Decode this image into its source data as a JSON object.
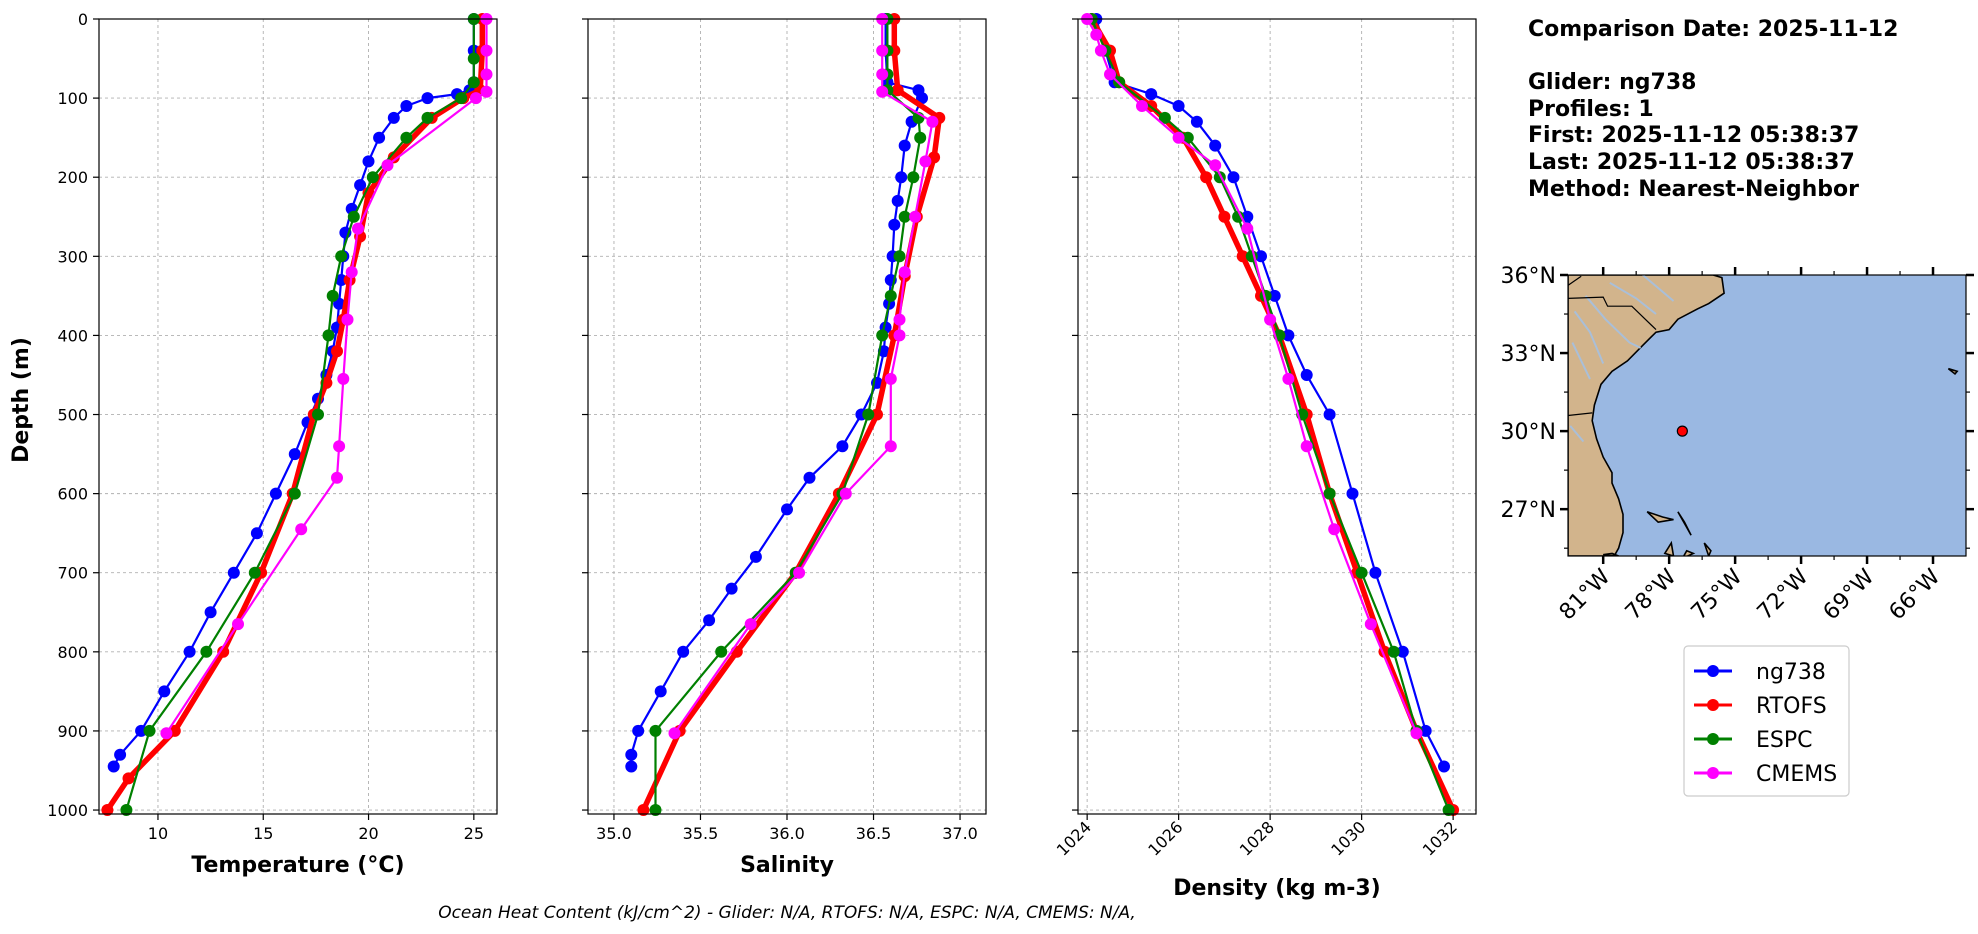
{
  "info": {
    "comparison_date": "Comparison Date: 2025-11-12",
    "glider": "Glider: ng738",
    "profiles": "Profiles: 1",
    "first": "First: 2025-11-12 05:38:37",
    "last": "Last: 2025-11-12 05:38:37",
    "method": "Method: Nearest-Neighbor"
  },
  "footer": "Ocean Heat Content (kJ/cm^2) - Glider: N/A,  RTOFS: N/A,  ESPC: N/A,  CMEMS: N/A,",
  "colors": {
    "ng738": "#0000ff",
    "RTOFS": "#ff0000",
    "ESPC": "#008000",
    "CMEMS": "#ff00ff",
    "land": "#d2b48c",
    "ocean": "#9ab8e2"
  },
  "map": {
    "lat_labels": [
      "36°N",
      "33°N",
      "30°N",
      "27°N"
    ],
    "lon_labels": [
      "81°W",
      "78°W",
      "75°W",
      "72°W",
      "69°W",
      "66°W"
    ],
    "lat_values": [
      36,
      33,
      30,
      27
    ],
    "lon_values": [
      -81,
      -78,
      -75,
      -72,
      -69,
      -66
    ],
    "extent": {
      "lon_min": -82.6,
      "lon_max": -64.5,
      "lat_min": 25.2,
      "lat_max": 36.0
    },
    "glider_position": {
      "lon": -77.4,
      "lat": 30.0
    }
  },
  "legend": [
    {
      "name": "ng738",
      "color": "#0000ff"
    },
    {
      "name": "RTOFS",
      "color": "#ff0000"
    },
    {
      "name": "ESPC",
      "color": "#008000"
    },
    {
      "name": "CMEMS",
      "color": "#ff00ff"
    }
  ],
  "chart_data": [
    {
      "type": "line",
      "xlabel": "Temperature (°C)",
      "ylabel": "Depth (m)",
      "xlim": [
        7.2,
        26.1
      ],
      "ylim": [
        1005,
        0
      ],
      "xticks": [
        10,
        15,
        20,
        25
      ],
      "yticks": [
        0,
        100,
        200,
        300,
        400,
        500,
        600,
        700,
        800,
        900,
        1000
      ],
      "grid": true,
      "series": [
        {
          "name": "ng738",
          "x": [
            25.0,
            25.0,
            25.0,
            24.8,
            24.2,
            22.8,
            21.8,
            21.2,
            20.5,
            20.0,
            19.6,
            19.2,
            18.9,
            18.8,
            18.7,
            18.6,
            18.5,
            18.3,
            18.0,
            17.6,
            17.1,
            16.5,
            15.6,
            14.7,
            13.6,
            12.5,
            11.5,
            10.3,
            9.2,
            8.2,
            7.9
          ],
          "y": [
            0,
            40,
            80,
            90,
            95,
            100,
            110,
            125,
            150,
            180,
            210,
            240,
            270,
            300,
            330,
            360,
            390,
            420,
            450,
            480,
            510,
            550,
            600,
            650,
            700,
            750,
            800,
            850,
            900,
            930,
            945
          ]
        },
        {
          "name": "RTOFS",
          "x": [
            25.4,
            25.4,
            25.3,
            24.5,
            23.0,
            21.2,
            20.0,
            19.6,
            19.1,
            18.8,
            18.5,
            18.0,
            17.4,
            16.4,
            14.9,
            13.1,
            10.8,
            8.6,
            7.6
          ],
          "y": [
            0,
            40,
            90,
            100,
            125,
            175,
            220,
            275,
            330,
            380,
            420,
            460,
            500,
            600,
            700,
            800,
            900,
            960,
            1000
          ]
        },
        {
          "name": "ESPC",
          "x": [
            25.0,
            25.0,
            25.0,
            24.4,
            22.8,
            21.8,
            20.2,
            19.3,
            18.7,
            18.3,
            18.1,
            17.6,
            16.5,
            14.6,
            12.3,
            9.6,
            8.5
          ],
          "y": [
            0,
            50,
            80,
            100,
            125,
            150,
            200,
            250,
            300,
            350,
            400,
            500,
            600,
            700,
            800,
            900,
            1000
          ]
        },
        {
          "name": "CMEMS",
          "x": [
            25.6,
            25.6,
            25.6,
            25.6,
            25.1,
            20.9,
            19.5,
            19.2,
            19.0,
            18.8,
            18.6,
            18.5,
            16.8,
            13.8,
            10.4
          ],
          "y": [
            0,
            40,
            70,
            92,
            100,
            185,
            265,
            320,
            380,
            455,
            540,
            580,
            645,
            765,
            903
          ]
        }
      ]
    },
    {
      "type": "line",
      "xlabel": "Salinity",
      "ylabel": "",
      "xlim": [
        34.85,
        37.15
      ],
      "ylim": [
        1005,
        0
      ],
      "xticks": [
        35.0,
        35.5,
        36.0,
        36.5,
        37.0
      ],
      "yticks": [
        0,
        100,
        200,
        300,
        400,
        500,
        600,
        700,
        800,
        900,
        1000
      ],
      "grid": true,
      "series": [
        {
          "name": "ng738",
          "x": [
            36.57,
            36.57,
            36.58,
            36.76,
            36.78,
            36.72,
            36.68,
            36.66,
            36.64,
            36.62,
            36.61,
            36.6,
            36.59,
            36.57,
            36.56,
            36.52,
            36.43,
            36.32,
            36.13,
            36.0,
            35.82,
            35.68,
            35.55,
            35.4,
            35.27,
            35.14,
            35.1,
            35.1
          ],
          "y": [
            0,
            40,
            80,
            90,
            100,
            130,
            160,
            200,
            230,
            260,
            300,
            330,
            360,
            390,
            420,
            460,
            500,
            540,
            580,
            620,
            680,
            720,
            760,
            800,
            850,
            900,
            930,
            945
          ]
        },
        {
          "name": "RTOFS",
          "x": [
            36.62,
            36.62,
            36.64,
            36.88,
            36.85,
            36.75,
            36.68,
            36.62,
            36.52,
            36.3,
            36.05,
            35.71,
            35.38,
            35.17
          ],
          "y": [
            0,
            40,
            90,
            125,
            175,
            250,
            325,
            400,
            500,
            600,
            700,
            800,
            900,
            1000
          ]
        },
        {
          "name": "ESPC",
          "x": [
            36.58,
            36.58,
            36.58,
            36.58,
            36.76,
            36.77,
            36.73,
            36.68,
            36.65,
            36.6,
            36.55,
            36.47,
            36.32,
            36.05,
            35.62,
            35.24,
            35.24
          ],
          "y": [
            0,
            40,
            70,
            90,
            125,
            150,
            200,
            250,
            300,
            350,
            400,
            500,
            600,
            700,
            800,
            900,
            1000
          ]
        },
        {
          "name": "CMEMS",
          "x": [
            36.55,
            36.55,
            36.55,
            36.55,
            36.84,
            36.8,
            36.74,
            36.68,
            36.65,
            36.65,
            36.6,
            36.6,
            36.34,
            36.07,
            35.79,
            35.35
          ],
          "y": [
            0,
            40,
            70,
            92,
            130,
            180,
            250,
            320,
            380,
            400,
            455,
            540,
            600,
            700,
            765,
            903
          ]
        }
      ]
    },
    {
      "type": "line",
      "xlabel": "Density (kg m-3)",
      "ylabel": "",
      "xlim": [
        1023.8,
        1032.5
      ],
      "ylim": [
        1005,
        0
      ],
      "xticks": [
        1024,
        1026,
        1028,
        1030,
        1032
      ],
      "yticks": [
        0,
        100,
        200,
        300,
        400,
        500,
        600,
        700,
        800,
        900,
        1000
      ],
      "grid": true,
      "series": [
        {
          "name": "ng738",
          "x": [
            1024.2,
            1024.4,
            1024.6,
            1025.4,
            1026.0,
            1026.4,
            1026.8,
            1027.2,
            1027.5,
            1027.8,
            1028.1,
            1028.4,
            1028.8,
            1029.3,
            1029.8,
            1030.3,
            1030.9,
            1031.4,
            1031.8
          ],
          "y": [
            0,
            40,
            80,
            95,
            110,
            130,
            160,
            200,
            250,
            300,
            350,
            400,
            450,
            500,
            600,
            700,
            800,
            900,
            945
          ]
        },
        {
          "name": "RTOFS",
          "x": [
            1024.1,
            1024.5,
            1024.7,
            1025.4,
            1026.1,
            1026.6,
            1027.0,
            1027.4,
            1027.8,
            1028.2,
            1028.8,
            1029.3,
            1029.9,
            1030.5,
            1031.2,
            1032.0
          ],
          "y": [
            0,
            40,
            80,
            110,
            150,
            200,
            250,
            300,
            350,
            400,
            500,
            600,
            700,
            800,
            900,
            1000
          ]
        },
        {
          "name": "ESPC",
          "x": [
            1024.1,
            1024.4,
            1024.7,
            1025.7,
            1026.2,
            1026.9,
            1027.3,
            1027.6,
            1027.9,
            1028.2,
            1028.7,
            1029.3,
            1030.0,
            1030.7,
            1031.2,
            1031.9
          ],
          "y": [
            0,
            40,
            80,
            125,
            150,
            200,
            250,
            300,
            350,
            400,
            500,
            600,
            700,
            800,
            900,
            1000
          ]
        },
        {
          "name": "CMEMS",
          "x": [
            1024.0,
            1024.2,
            1024.3,
            1024.5,
            1025.2,
            1026.0,
            1026.8,
            1027.5,
            1028.0,
            1028.4,
            1028.8,
            1029.4,
            1030.2,
            1031.2
          ],
          "y": [
            0,
            20,
            40,
            70,
            110,
            150,
            185,
            265,
            380,
            455,
            540,
            645,
            765,
            903
          ]
        }
      ]
    }
  ]
}
